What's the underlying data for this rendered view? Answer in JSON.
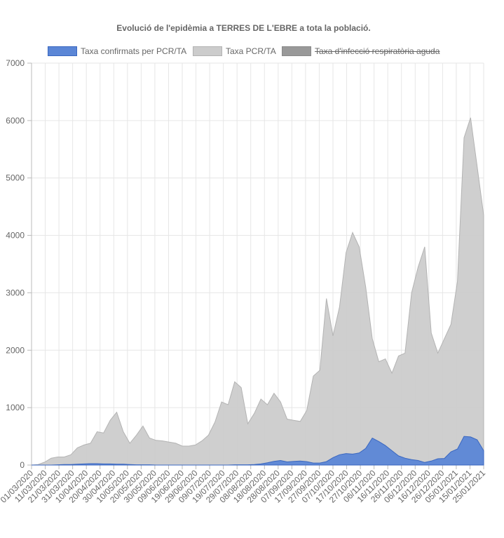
{
  "chart_data": {
    "type": "area",
    "title": "Evolució de l'epidèmia a TERRES DE L'EBRE a tota la població.",
    "xlabel": "",
    "ylabel": "",
    "ylim": [
      0,
      7000
    ],
    "yticks": [
      0,
      1000,
      2000,
      3000,
      4000,
      5000,
      6000,
      7000
    ],
    "x_tick_labels": [
      "01/03/2020",
      "11/03/2020",
      "21/03/2020",
      "31/03/2020",
      "10/04/2020",
      "20/04/2020",
      "30/04/2020",
      "10/05/2020",
      "20/05/2020",
      "30/05/2020",
      "09/06/2020",
      "19/06/2020",
      "29/06/2020",
      "09/07/2020",
      "19/07/2020",
      "29/07/2020",
      "08/08/2020",
      "18/08/2020",
      "28/08/2020",
      "07/09/2020",
      "17/09/2020",
      "27/09/2020",
      "07/10/2020",
      "17/10/2020",
      "27/10/2020",
      "06/11/2020",
      "16/11/2020",
      "26/11/2020",
      "06/12/2020",
      "16/12/2020",
      "26/12/2020",
      "05/01/2021",
      "15/01/2021",
      "25/01/2021"
    ],
    "grid": true,
    "legend_position": "top",
    "series": [
      {
        "name": "Taxa confirmats per PCR/TA",
        "color": "#5b86d6",
        "border": "#3a67c0",
        "hidden": false,
        "values": [
          0,
          0,
          0,
          0,
          5,
          10,
          10,
          15,
          20,
          25,
          25,
          20,
          20,
          15,
          15,
          10,
          5,
          5,
          5,
          0,
          0,
          0,
          0,
          0,
          0,
          0,
          0,
          0,
          0,
          0,
          0,
          5,
          5,
          5,
          10,
          20,
          40,
          65,
          80,
          55,
          65,
          70,
          60,
          35,
          35,
          60,
          130,
          180,
          200,
          190,
          210,
          290,
          470,
          410,
          340,
          250,
          160,
          120,
          95,
          80,
          45,
          70,
          110,
          115,
          230,
          280,
          500,
          490,
          440,
          250
        ]
      },
      {
        "name": "Taxa PCR/TA",
        "color": "#cccccc",
        "border": "#b3b3b3",
        "hidden": false,
        "values": [
          0,
          10,
          50,
          120,
          140,
          140,
          180,
          300,
          350,
          380,
          580,
          560,
          780,
          920,
          580,
          380,
          520,
          680,
          470,
          430,
          420,
          400,
          380,
          330,
          330,
          350,
          420,
          520,
          750,
          1100,
          1050,
          1450,
          1350,
          720,
          900,
          1150,
          1050,
          1250,
          1100,
          800,
          780,
          760,
          950,
          1550,
          1650,
          2900,
          2250,
          2750,
          3700,
          4050,
          3800,
          3100,
          2200,
          1800,
          1850,
          1600,
          1900,
          1950,
          3000,
          3450,
          3800,
          2300,
          1950,
          2200,
          2450,
          3200,
          5700,
          6050,
          5200,
          4350
        ]
      },
      {
        "name": "Taxa d'infecció respiratòria aguda",
        "color": "#999999",
        "border": "#888888",
        "hidden": true,
        "values": []
      }
    ]
  }
}
